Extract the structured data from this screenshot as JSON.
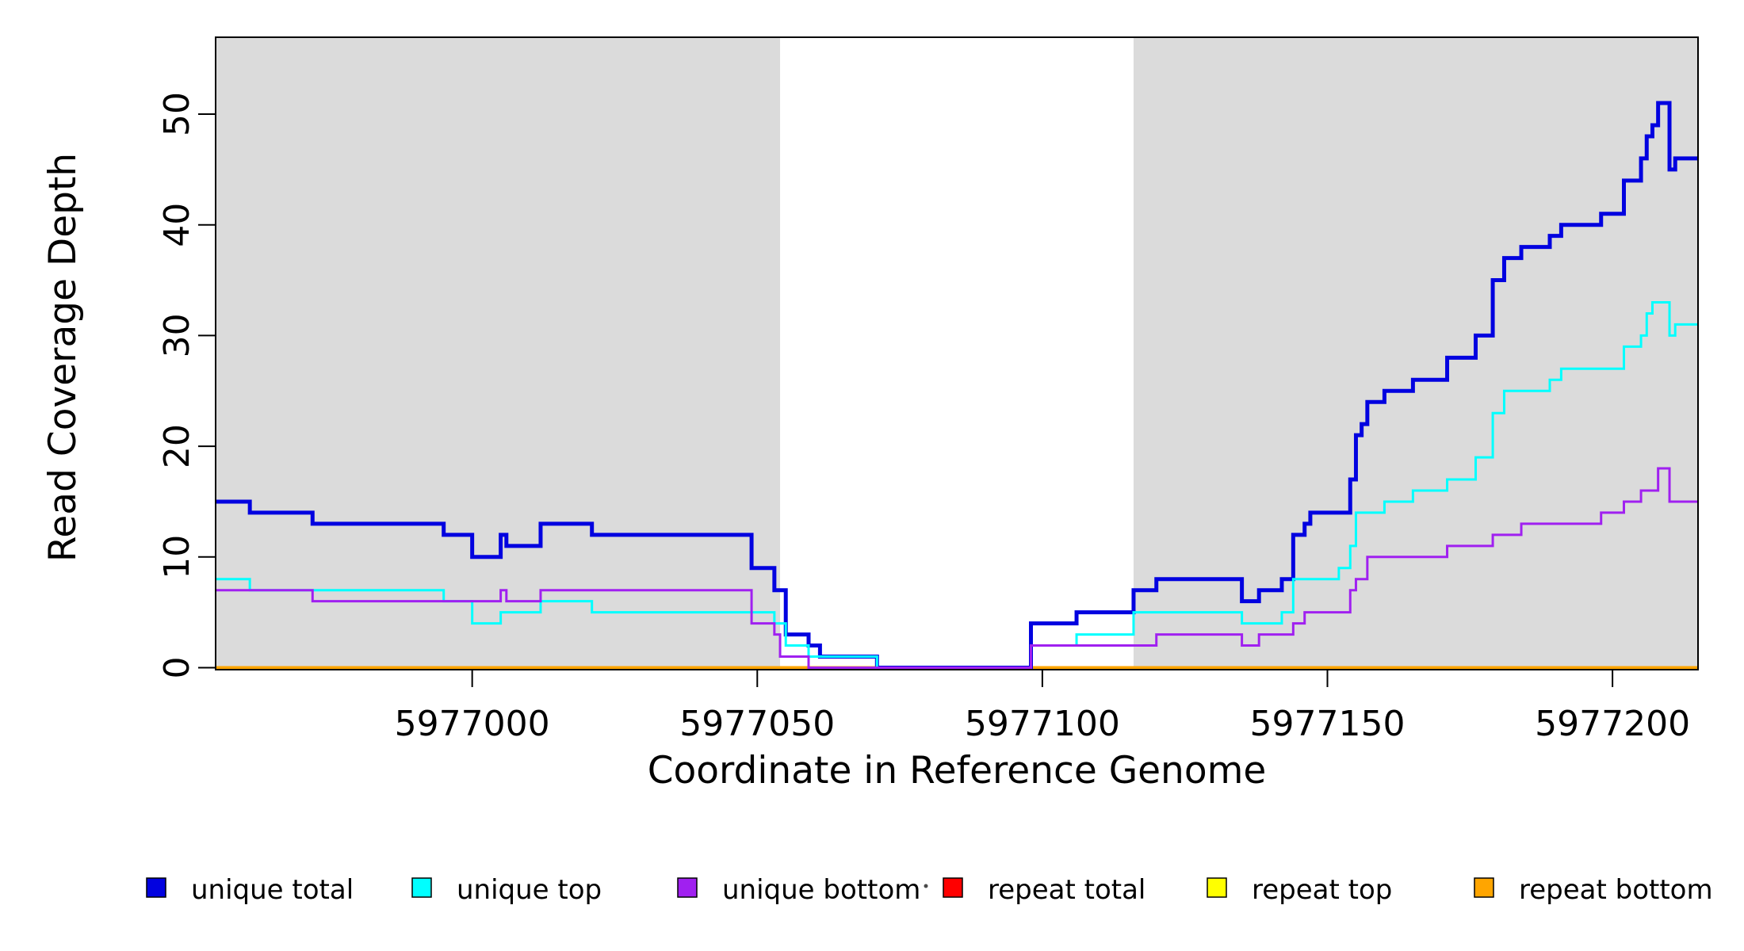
{
  "chart_data": {
    "type": "line",
    "subtype": "step",
    "title": "",
    "xlabel": "Coordinate in Reference Genome",
    "ylabel": "Read Coverage Depth",
    "x_domain": [
      5976955,
      5977215
    ],
    "y_domain": [
      0,
      57
    ],
    "x_ticks": [
      5977000,
      5977050,
      5977100,
      5977150,
      5977200
    ],
    "y_ticks": [
      0,
      10,
      20,
      30,
      40,
      50
    ],
    "grid": false,
    "legend_position": "bottom",
    "background_color": "#ffffff",
    "band_color": "#DBDBDB",
    "highlight_bands": [
      {
        "name": "covered-region-left",
        "x_start": 5976955,
        "x_end": 5977054
      },
      {
        "name": "covered-region-right",
        "x_start": 5977116,
        "x_end": 5977215
      }
    ],
    "draw_order": [
      3,
      4,
      5,
      0,
      1,
      2
    ],
    "x_end": 5977215,
    "series": [
      {
        "name": "unique total",
        "color": "#0202E0",
        "width": 5,
        "steps": [
          [
            5976955,
            15
          ],
          [
            5976961,
            14
          ],
          [
            5976972,
            13
          ],
          [
            5976995,
            12
          ],
          [
            5977000,
            10
          ],
          [
            5977005,
            12
          ],
          [
            5977006,
            11
          ],
          [
            5977012,
            13
          ],
          [
            5977021,
            12
          ],
          [
            5977049,
            9
          ],
          [
            5977053,
            7
          ],
          [
            5977055,
            3
          ],
          [
            5977059,
            2
          ],
          [
            5977061,
            1
          ],
          [
            5977071,
            0
          ],
          [
            5977098,
            4
          ],
          [
            5977106,
            5
          ],
          [
            5977116,
            7
          ],
          [
            5977120,
            8
          ],
          [
            5977135,
            6
          ],
          [
            5977138,
            7
          ],
          [
            5977142,
            8
          ],
          [
            5977144,
            12
          ],
          [
            5977146,
            13
          ],
          [
            5977147,
            14
          ],
          [
            5977154,
            17
          ],
          [
            5977155,
            21
          ],
          [
            5977156,
            22
          ],
          [
            5977157,
            24
          ],
          [
            5977160,
            25
          ],
          [
            5977165,
            26
          ],
          [
            5977171,
            28
          ],
          [
            5977176,
            30
          ],
          [
            5977179,
            35
          ],
          [
            5977181,
            37
          ],
          [
            5977184,
            38
          ],
          [
            5977189,
            39
          ],
          [
            5977191,
            40
          ],
          [
            5977198,
            41
          ],
          [
            5977202,
            44
          ],
          [
            5977205,
            46
          ],
          [
            5977206,
            48
          ],
          [
            5977207,
            49
          ],
          [
            5977208,
            51
          ],
          [
            5977210,
            45
          ],
          [
            5977211,
            46
          ]
        ]
      },
      {
        "name": "unique top",
        "color": "#00FFFF",
        "width": 3,
        "steps": [
          [
            5976955,
            8
          ],
          [
            5976961,
            7
          ],
          [
            5976995,
            6
          ],
          [
            5977000,
            4
          ],
          [
            5977005,
            5
          ],
          [
            5977012,
            6
          ],
          [
            5977021,
            5
          ],
          [
            5977053,
            4
          ],
          [
            5977055,
            2
          ],
          [
            5977059,
            1
          ],
          [
            5977071,
            0
          ],
          [
            5977098,
            2
          ],
          [
            5977106,
            3
          ],
          [
            5977116,
            5
          ],
          [
            5977135,
            4
          ],
          [
            5977142,
            5
          ],
          [
            5977144,
            8
          ],
          [
            5977152,
            9
          ],
          [
            5977154,
            11
          ],
          [
            5977155,
            14
          ],
          [
            5977160,
            15
          ],
          [
            5977165,
            16
          ],
          [
            5977171,
            17
          ],
          [
            5977176,
            19
          ],
          [
            5977179,
            23
          ],
          [
            5977181,
            25
          ],
          [
            5977189,
            26
          ],
          [
            5977191,
            27
          ],
          [
            5977202,
            29
          ],
          [
            5977205,
            30
          ],
          [
            5977206,
            32
          ],
          [
            5977207,
            33
          ],
          [
            5977210,
            30
          ],
          [
            5977211,
            31
          ]
        ]
      },
      {
        "name": "unique bottom",
        "color": "#A020F0",
        "width": 3,
        "steps": [
          [
            5976955,
            7
          ],
          [
            5976972,
            6
          ],
          [
            5977005,
            7
          ],
          [
            5977006,
            6
          ],
          [
            5977012,
            7
          ],
          [
            5977049,
            4
          ],
          [
            5977053,
            3
          ],
          [
            5977054,
            1
          ],
          [
            5977059,
            0
          ],
          [
            5977098,
            2
          ],
          [
            5977120,
            3
          ],
          [
            5977135,
            2
          ],
          [
            5977138,
            3
          ],
          [
            5977144,
            4
          ],
          [
            5977146,
            5
          ],
          [
            5977154,
            7
          ],
          [
            5977155,
            8
          ],
          [
            5977157,
            10
          ],
          [
            5977171,
            11
          ],
          [
            5977179,
            12
          ],
          [
            5977184,
            13
          ],
          [
            5977198,
            14
          ],
          [
            5977202,
            15
          ],
          [
            5977205,
            16
          ],
          [
            5977208,
            18
          ],
          [
            5977210,
            15
          ]
        ]
      },
      {
        "name": "repeat total",
        "color": "#FF0000",
        "width": 3,
        "steps": [
          [
            5976955,
            0
          ]
        ]
      },
      {
        "name": "repeat top",
        "color": "#FFFF00",
        "width": 3,
        "steps": [
          [
            5976955,
            0
          ]
        ]
      },
      {
        "name": "repeat bottom",
        "color": "#FFA500",
        "width": 4,
        "steps": [
          [
            5976955,
            0
          ]
        ]
      }
    ]
  }
}
